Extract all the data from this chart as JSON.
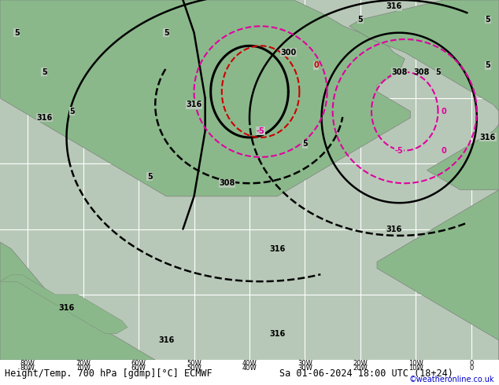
{
  "title_left": "Height/Temp. 700 hPa [gdmp][°C] ECMWF",
  "title_right": "Sa 01-06-2024 18:00 UTC (18+24)",
  "credit": "©weatheronline.co.uk",
  "background_ocean": "#b8c8b8",
  "land_color": "#8ab88a",
  "grid_color": "#ffffff",
  "title_fontsize": 8.5,
  "credit_color": "#0000cc",
  "lon_min": -85,
  "lon_max": 5,
  "lat_min": 10,
  "lat_max": 65
}
